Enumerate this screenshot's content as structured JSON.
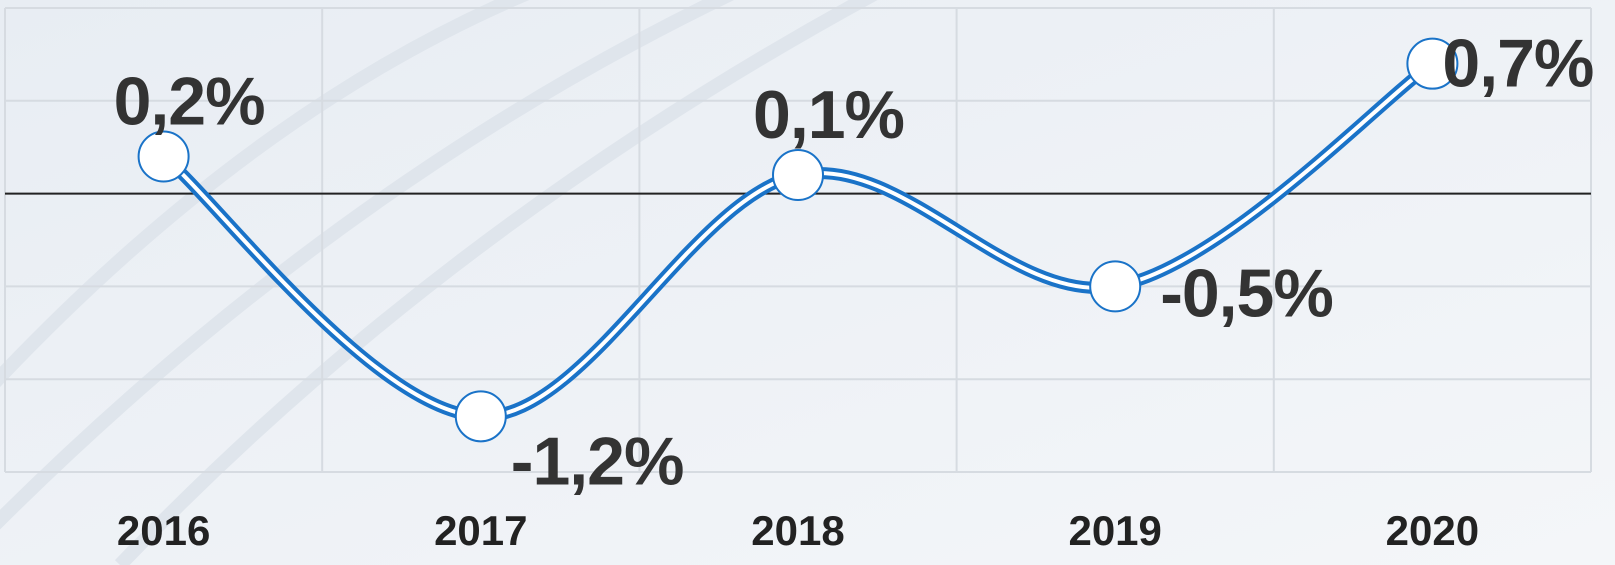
{
  "chart_data": {
    "type": "line",
    "categories": [
      "2016",
      "2017",
      "2018",
      "2019",
      "2020"
    ],
    "values": [
      0.2,
      -1.2,
      0.1,
      -0.5,
      0.7
    ],
    "value_labels": [
      "0,2%",
      "-1,2%",
      "0,1%",
      "-0,5%",
      "0,7%"
    ],
    "color": "#1a73c8",
    "ylim": [
      -1.5,
      1
    ],
    "yticks": [
      -1.5,
      -1,
      -0.5,
      0,
      0.5,
      1
    ],
    "grid": true,
    "zero_line": true
  }
}
